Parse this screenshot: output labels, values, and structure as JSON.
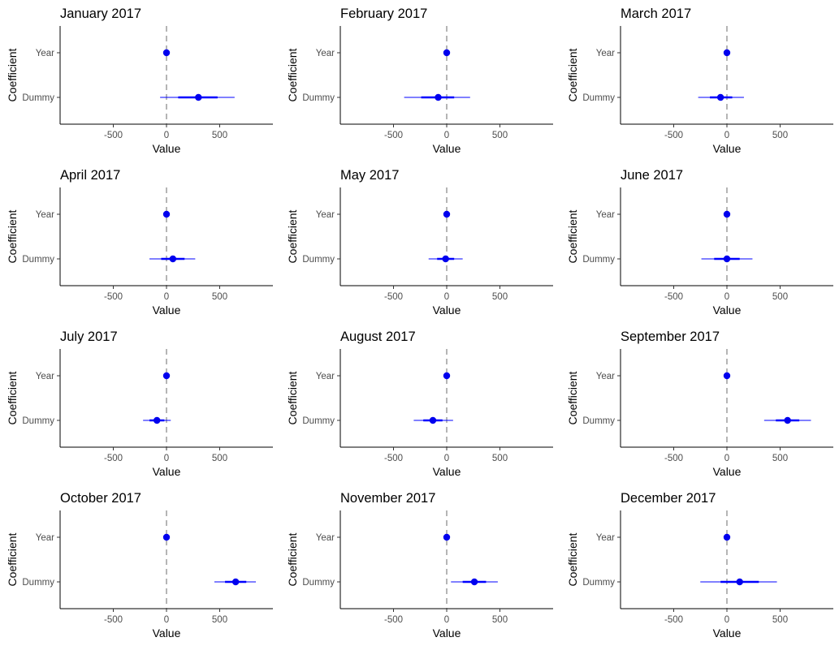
{
  "colors": {
    "point": "#0000ee",
    "interval": "#0000ff",
    "reference_line": "#b5b5b5",
    "tick_label": "#4d4d4d",
    "axis": "#000000"
  },
  "chart_data": [
    {
      "type": "scatter",
      "title": "January 2017",
      "xlabel": "Value",
      "ylabel": "Coefficient",
      "xlim": [
        -1000,
        1000
      ],
      "xticks": [
        -500,
        0,
        500
      ],
      "categories": [
        "Year",
        "Dummy"
      ],
      "reference_x": 0,
      "points": [
        {
          "category": "Year",
          "estimate": 0,
          "inner": [
            0,
            0
          ],
          "outer": [
            0,
            0
          ]
        },
        {
          "category": "Dummy",
          "estimate": 300,
          "inner": [
            110,
            480
          ],
          "outer": [
            -60,
            640
          ]
        }
      ]
    },
    {
      "type": "scatter",
      "title": "February 2017",
      "xlabel": "Value",
      "ylabel": "Coefficient",
      "xlim": [
        -1000,
        1000
      ],
      "xticks": [
        -500,
        0,
        500
      ],
      "categories": [
        "Year",
        "Dummy"
      ],
      "reference_x": 0,
      "points": [
        {
          "category": "Year",
          "estimate": 0,
          "inner": [
            0,
            0
          ],
          "outer": [
            0,
            0
          ]
        },
        {
          "category": "Dummy",
          "estimate": -80,
          "inner": [
            -240,
            70
          ],
          "outer": [
            -400,
            220
          ]
        }
      ]
    },
    {
      "type": "scatter",
      "title": "March 2017",
      "xlabel": "Value",
      "ylabel": "Coefficient",
      "xlim": [
        -1000,
        1000
      ],
      "xticks": [
        -500,
        0,
        500
      ],
      "categories": [
        "Year",
        "Dummy"
      ],
      "reference_x": 0,
      "points": [
        {
          "category": "Year",
          "estimate": 0,
          "inner": [
            0,
            0
          ],
          "outer": [
            0,
            0
          ]
        },
        {
          "category": "Dummy",
          "estimate": -60,
          "inner": [
            -160,
            50
          ],
          "outer": [
            -270,
            160
          ]
        }
      ]
    },
    {
      "type": "scatter",
      "title": "April 2017",
      "xlabel": "Value",
      "ylabel": "Coefficient",
      "xlim": [
        -1000,
        1000
      ],
      "xticks": [
        -500,
        0,
        500
      ],
      "categories": [
        "Year",
        "Dummy"
      ],
      "reference_x": 0,
      "points": [
        {
          "category": "Year",
          "estimate": 0,
          "inner": [
            0,
            0
          ],
          "outer": [
            0,
            0
          ]
        },
        {
          "category": "Dummy",
          "estimate": 60,
          "inner": [
            -50,
            170
          ],
          "outer": [
            -160,
            270
          ]
        }
      ]
    },
    {
      "type": "scatter",
      "title": "May 2017",
      "xlabel": "Value",
      "ylabel": "Coefficient",
      "xlim": [
        -1000,
        1000
      ],
      "xticks": [
        -500,
        0,
        500
      ],
      "categories": [
        "Year",
        "Dummy"
      ],
      "reference_x": 0,
      "points": [
        {
          "category": "Year",
          "estimate": 0,
          "inner": [
            0,
            0
          ],
          "outer": [
            0,
            0
          ]
        },
        {
          "category": "Dummy",
          "estimate": -10,
          "inner": [
            -90,
            70
          ],
          "outer": [
            -170,
            150
          ]
        }
      ]
    },
    {
      "type": "scatter",
      "title": "June 2017",
      "xlabel": "Value",
      "ylabel": "Coefficient",
      "xlim": [
        -1000,
        1000
      ],
      "xticks": [
        -500,
        0,
        500
      ],
      "categories": [
        "Year",
        "Dummy"
      ],
      "reference_x": 0,
      "points": [
        {
          "category": "Year",
          "estimate": 0,
          "inner": [
            0,
            0
          ],
          "outer": [
            0,
            0
          ]
        },
        {
          "category": "Dummy",
          "estimate": 0,
          "inner": [
            -120,
            120
          ],
          "outer": [
            -240,
            240
          ]
        }
      ]
    },
    {
      "type": "scatter",
      "title": "July 2017",
      "xlabel": "Value",
      "ylabel": "Coefficient",
      "xlim": [
        -1000,
        1000
      ],
      "xticks": [
        -500,
        0,
        500
      ],
      "categories": [
        "Year",
        "Dummy"
      ],
      "reference_x": 0,
      "points": [
        {
          "category": "Year",
          "estimate": 0,
          "inner": [
            0,
            0
          ],
          "outer": [
            0,
            0
          ]
        },
        {
          "category": "Dummy",
          "estimate": -90,
          "inner": [
            -160,
            -20
          ],
          "outer": [
            -220,
            40
          ]
        }
      ]
    },
    {
      "type": "scatter",
      "title": "August 2017",
      "xlabel": "Value",
      "ylabel": "Coefficient",
      "xlim": [
        -1000,
        1000
      ],
      "xticks": [
        -500,
        0,
        500
      ],
      "categories": [
        "Year",
        "Dummy"
      ],
      "reference_x": 0,
      "points": [
        {
          "category": "Year",
          "estimate": 0,
          "inner": [
            0,
            0
          ],
          "outer": [
            0,
            0
          ]
        },
        {
          "category": "Dummy",
          "estimate": -130,
          "inner": [
            -220,
            -40
          ],
          "outer": [
            -310,
            60
          ]
        }
      ]
    },
    {
      "type": "scatter",
      "title": "September 2017",
      "xlabel": "Value",
      "ylabel": "Coefficient",
      "xlim": [
        -1000,
        1000
      ],
      "xticks": [
        -500,
        0,
        500
      ],
      "categories": [
        "Year",
        "Dummy"
      ],
      "reference_x": 0,
      "points": [
        {
          "category": "Year",
          "estimate": 0,
          "inner": [
            0,
            0
          ],
          "outer": [
            0,
            0
          ]
        },
        {
          "category": "Dummy",
          "estimate": 570,
          "inner": [
            460,
            680
          ],
          "outer": [
            350,
            790
          ]
        }
      ]
    },
    {
      "type": "scatter",
      "title": "October 2017",
      "xlabel": "Value",
      "ylabel": "Coefficient",
      "xlim": [
        -1000,
        1000
      ],
      "xticks": [
        -500,
        0,
        500
      ],
      "categories": [
        "Year",
        "Dummy"
      ],
      "reference_x": 0,
      "points": [
        {
          "category": "Year",
          "estimate": 0,
          "inner": [
            0,
            0
          ],
          "outer": [
            0,
            0
          ]
        },
        {
          "category": "Dummy",
          "estimate": 650,
          "inner": [
            550,
            750
          ],
          "outer": [
            450,
            840
          ]
        }
      ]
    },
    {
      "type": "scatter",
      "title": "November 2017",
      "xlabel": "Value",
      "ylabel": "Coefficient",
      "xlim": [
        -1000,
        1000
      ],
      "xticks": [
        -500,
        0,
        500
      ],
      "categories": [
        "Year",
        "Dummy"
      ],
      "reference_x": 0,
      "points": [
        {
          "category": "Year",
          "estimate": 0,
          "inner": [
            0,
            0
          ],
          "outer": [
            0,
            0
          ]
        },
        {
          "category": "Dummy",
          "estimate": 260,
          "inner": [
            150,
            370
          ],
          "outer": [
            40,
            480
          ]
        }
      ]
    },
    {
      "type": "scatter",
      "title": "December 2017",
      "xlabel": "Value",
      "ylabel": "Coefficient",
      "xlim": [
        -1000,
        1000
      ],
      "xticks": [
        -500,
        0,
        500
      ],
      "categories": [
        "Year",
        "Dummy"
      ],
      "reference_x": 0,
      "points": [
        {
          "category": "Year",
          "estimate": 0,
          "inner": [
            0,
            0
          ],
          "outer": [
            0,
            0
          ]
        },
        {
          "category": "Dummy",
          "estimate": 120,
          "inner": [
            -60,
            300
          ],
          "outer": [
            -250,
            470
          ]
        }
      ]
    }
  ]
}
